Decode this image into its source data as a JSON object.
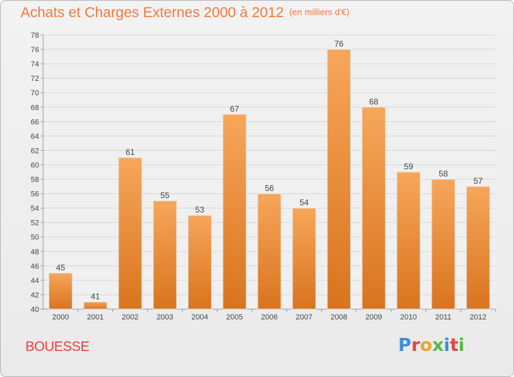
{
  "title": "Achats et Charges Externes 2000 à 2012",
  "title_unit": "(en milliers d'€)",
  "commune": "BOUESSE",
  "logo": {
    "text": "Proxiti",
    "letter_colors": [
      "#3c8fd6",
      "#e8453c",
      "#f0a22e",
      "#58b947",
      "#3c8fd6",
      "#e8453c",
      "#58b947"
    ]
  },
  "colors": {
    "bar_top": "#f7a65a",
    "bar_bottom": "#d9741e",
    "title": "#f07a3c",
    "commune": "#e8453c"
  },
  "chart_data": {
    "type": "bar",
    "categories": [
      "2000",
      "2001",
      "2002",
      "2003",
      "2004",
      "2005",
      "2006",
      "2007",
      "2008",
      "2009",
      "2010",
      "2011",
      "2012"
    ],
    "values": [
      45,
      41,
      61,
      55,
      53,
      67,
      56,
      54,
      76,
      68,
      59,
      58,
      57
    ],
    "ylim": [
      40,
      78
    ],
    "yticks": [
      40,
      42,
      44,
      46,
      48,
      50,
      52,
      54,
      56,
      58,
      60,
      62,
      64,
      66,
      68,
      70,
      72,
      74,
      76,
      78
    ],
    "grid": true,
    "data_labels": true
  }
}
